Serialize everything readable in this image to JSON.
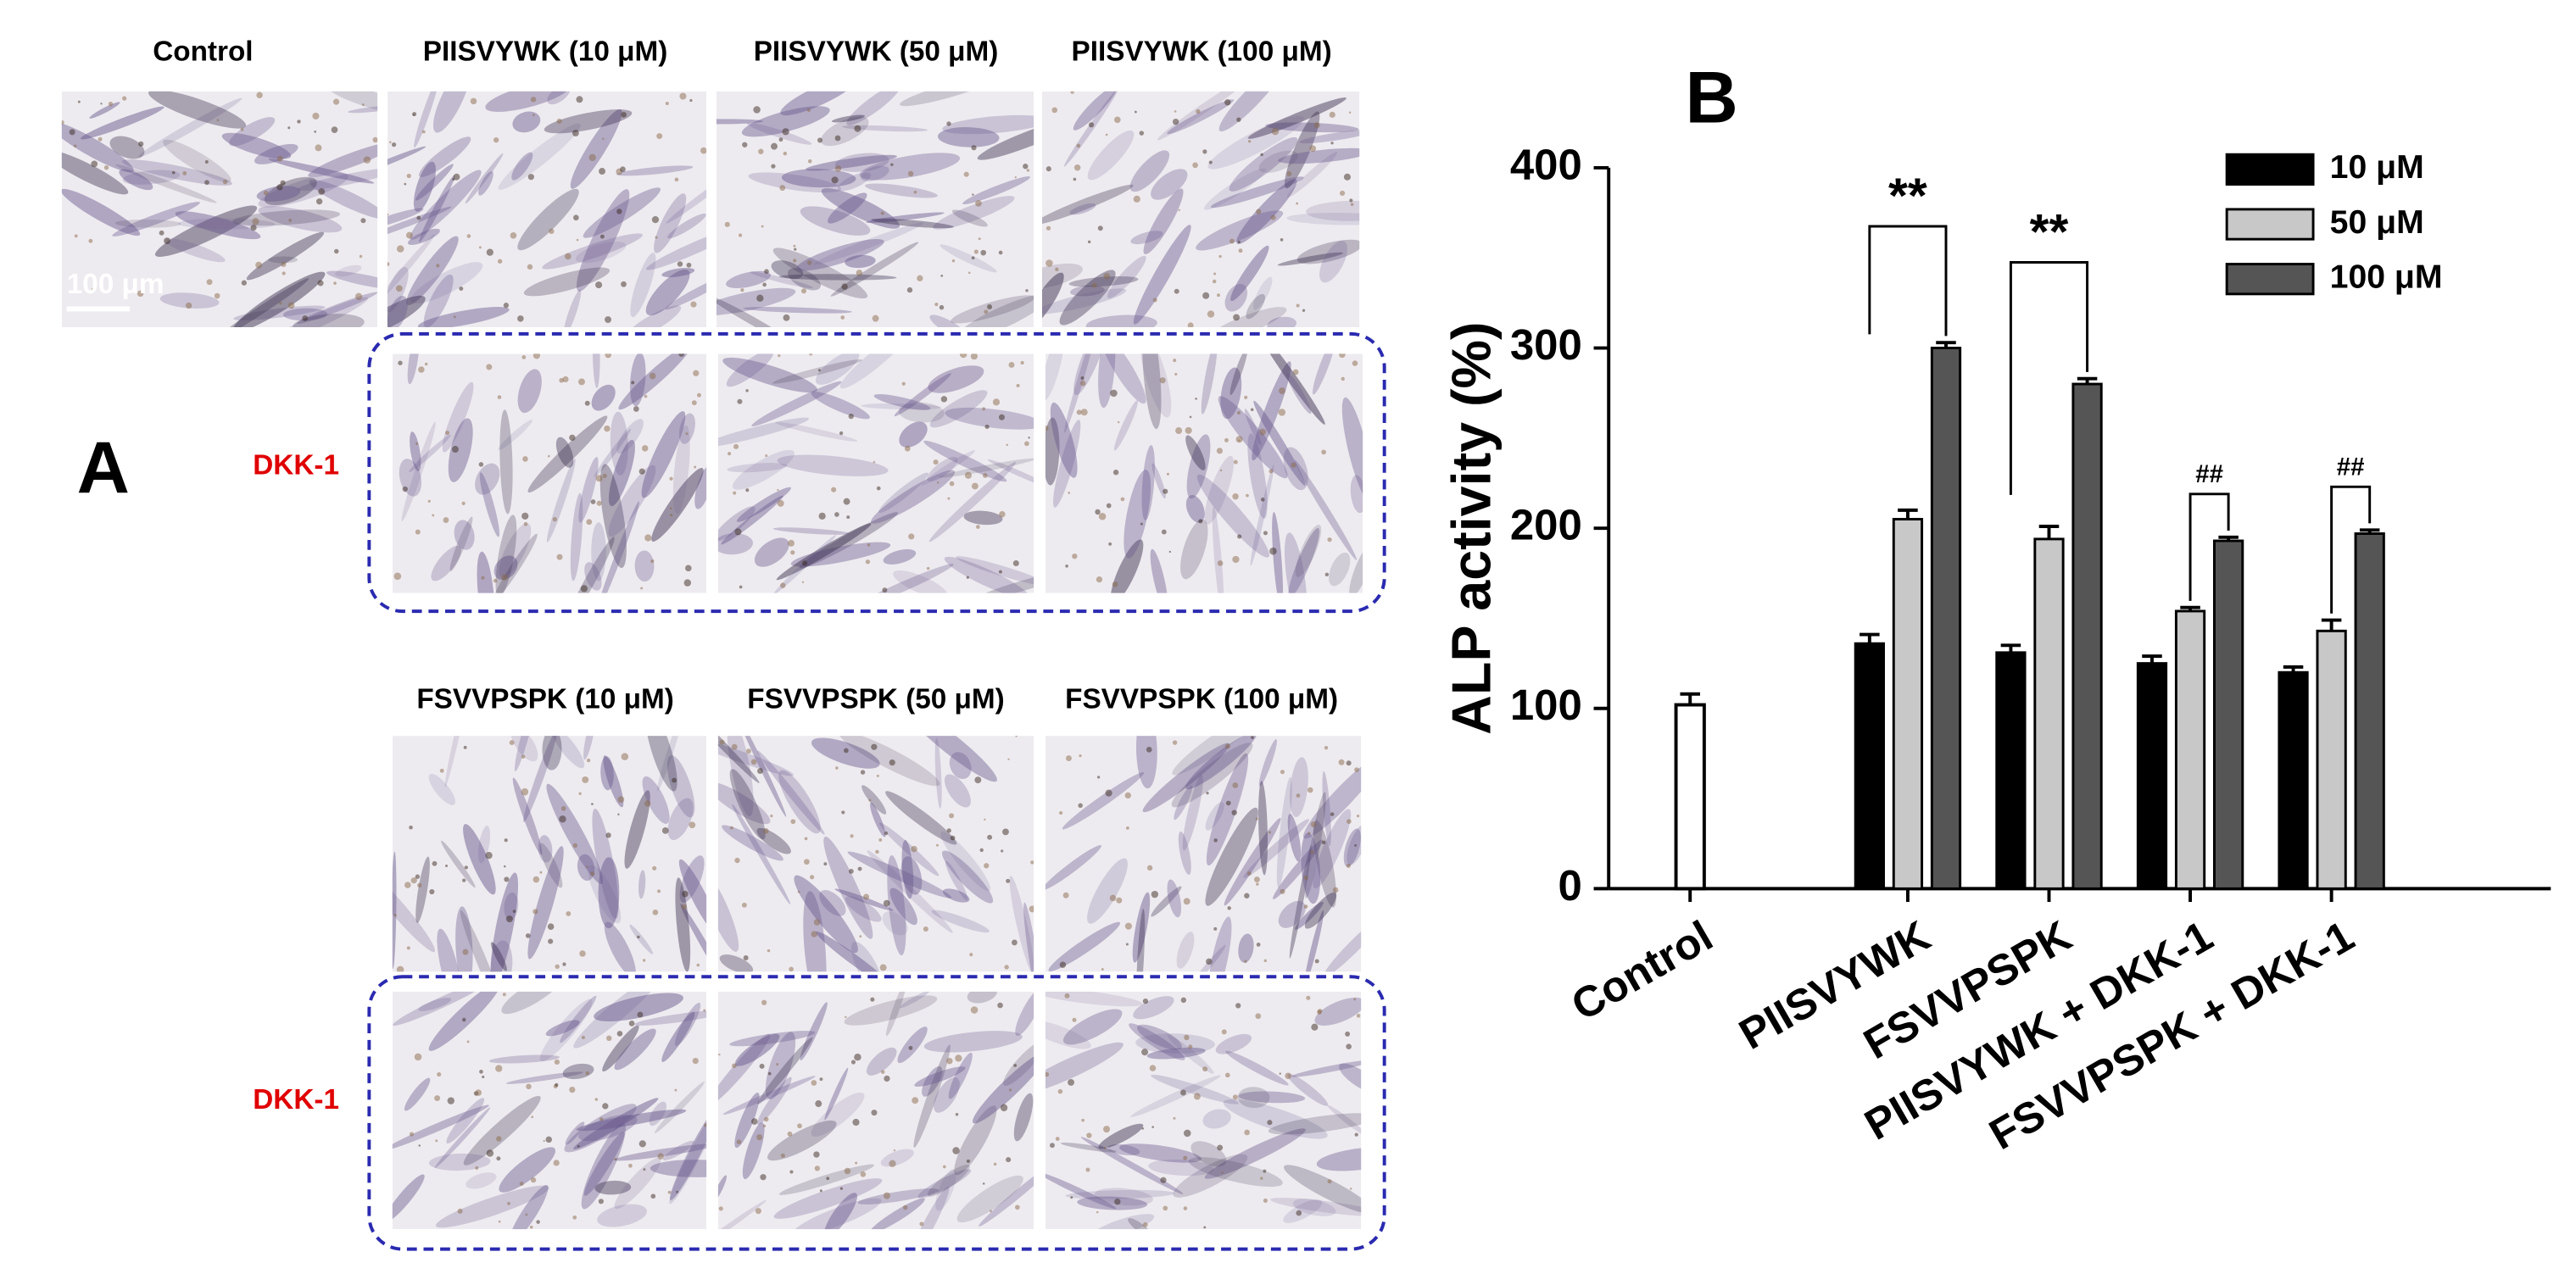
{
  "panel_a": {
    "label": "A",
    "scale_bar": "100 μm",
    "top_headers": [
      "Control",
      "PIISVYWK (10 μM)",
      "PIISVYWK (50 μM)",
      "PIISVYWK (100 μM)"
    ],
    "bottom_headers": [
      "FSVVPSPK (10 μM)",
      "FSVVPSPK (50 μM)",
      "FSVVPSPK (100 μM)"
    ],
    "row_labels": [
      "DKK-1",
      "DKK-1"
    ]
  },
  "chart_data": {
    "type": "bar",
    "panel_label": "B",
    "y_label": "ALP activity (%)",
    "categories": [
      "Control",
      "PIISVYWK",
      "FSVVPSPK",
      "PIISVYWK + DKK-1",
      "FSVVPSPK + DKK-1"
    ],
    "series": [
      {
        "name": "10 μM",
        "color": "#000000",
        "values": [
          null,
          136,
          131,
          125,
          120
        ],
        "errors": [
          null,
          5,
          4,
          4,
          3
        ]
      },
      {
        "name": "50 μM",
        "color": "#c8c8c8",
        "values": [
          null,
          205,
          194,
          154,
          143
        ],
        "errors": [
          null,
          5,
          7,
          2,
          6
        ]
      },
      {
        "name": "100 μM",
        "color": "#555555",
        "values": [
          null,
          300,
          280,
          193,
          197
        ],
        "errors": [
          null,
          3,
          3,
          2,
          2
        ]
      }
    ],
    "control_bar": {
      "value": 102,
      "error": 6,
      "color": "#ffffff"
    },
    "significance": [
      null,
      "**",
      "**",
      "##",
      "##"
    ],
    "ylim": [
      0,
      400
    ],
    "yticks": [
      0,
      100,
      200,
      300,
      400
    ],
    "legend": "top-right"
  }
}
